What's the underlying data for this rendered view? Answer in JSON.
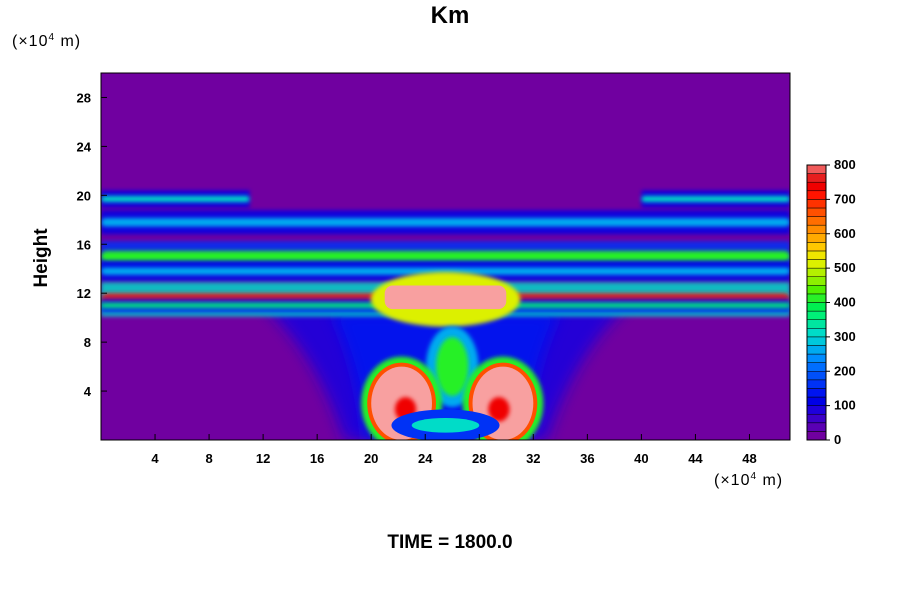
{
  "chart_data": {
    "type": "heatmap",
    "title": "Km",
    "x_unit": {
      "prefix": "(×10",
      "exp": "4",
      "suffix": " m)"
    },
    "y_unit": {
      "prefix": "(×10",
      "exp": "4",
      "suffix": " m)"
    },
    "ylabel": "Height",
    "xlabel": "",
    "footer": "TIME = 1800.0",
    "xlim": [
      0,
      51
    ],
    "ylim": [
      0,
      30
    ],
    "x_ticks": [
      4,
      8,
      12,
      16,
      20,
      24,
      28,
      32,
      36,
      40,
      44,
      48
    ],
    "y_ticks": [
      4,
      8,
      12,
      16,
      20,
      24,
      28
    ],
    "colorbar": {
      "min": 0,
      "max": 800,
      "tick_values": [
        0,
        100,
        200,
        300,
        400,
        500,
        600,
        700,
        800
      ],
      "levels": [
        {
          "value": 0,
          "color": "#7000a0"
        },
        {
          "value": 25,
          "color": "#5a00b4"
        },
        {
          "value": 50,
          "color": "#3c00c8"
        },
        {
          "value": 75,
          "color": "#1e00dc"
        },
        {
          "value": 100,
          "color": "#0000e6"
        },
        {
          "value": 125,
          "color": "#0014f0"
        },
        {
          "value": 150,
          "color": "#0032f5"
        },
        {
          "value": 175,
          "color": "#0050fa"
        },
        {
          "value": 200,
          "color": "#006eff"
        },
        {
          "value": 225,
          "color": "#008cff"
        },
        {
          "value": 250,
          "color": "#00aaf0"
        },
        {
          "value": 275,
          "color": "#00c8dc"
        },
        {
          "value": 300,
          "color": "#00dcc8"
        },
        {
          "value": 325,
          "color": "#00e6a0"
        },
        {
          "value": 350,
          "color": "#00f078"
        },
        {
          "value": 375,
          "color": "#00f050"
        },
        {
          "value": 400,
          "color": "#28f028"
        },
        {
          "value": 425,
          "color": "#50f000"
        },
        {
          "value": 450,
          "color": "#8cf000"
        },
        {
          "value": 475,
          "color": "#b4f000"
        },
        {
          "value": 500,
          "color": "#dcf000"
        },
        {
          "value": 525,
          "color": "#f0e600"
        },
        {
          "value": 550,
          "color": "#ffc800"
        },
        {
          "value": 575,
          "color": "#ffaa00"
        },
        {
          "value": 600,
          "color": "#ff8c00"
        },
        {
          "value": 625,
          "color": "#ff6e00"
        },
        {
          "value": 650,
          "color": "#ff5000"
        },
        {
          "value": 675,
          "color": "#ff3200"
        },
        {
          "value": 700,
          "color": "#ff1400"
        },
        {
          "value": 725,
          "color": "#f00000"
        },
        {
          "value": 750,
          "color": "#e61e1e"
        },
        {
          "value": 775,
          "color": "#f05a5a"
        },
        {
          "value": 800,
          "color": "#f8a0a0"
        }
      ]
    },
    "background_value": 0,
    "features": [
      {
        "name": "band-z20-left",
        "x0": 0,
        "x1": 11,
        "y": 19.7,
        "thickness": 0.5,
        "value": 300
      },
      {
        "name": "band-z20-right",
        "x0": 40,
        "x1": 51,
        "y": 19.7,
        "thickness": 0.5,
        "value": 300
      },
      {
        "name": "band-z18",
        "x0": 0,
        "x1": 51,
        "y": 17.8,
        "thickness": 0.7,
        "value": 250
      },
      {
        "name": "band-z15",
        "x0": 0,
        "x1": 51,
        "y": 15.0,
        "thickness": 0.9,
        "value": 400
      },
      {
        "name": "band-z13_8",
        "x0": 0,
        "x1": 51,
        "y": 13.8,
        "thickness": 0.6,
        "value": 250
      },
      {
        "name": "band-z11_5",
        "x0": 0,
        "x1": 51,
        "y": 11.5,
        "thickness": 1.0,
        "value": 750
      },
      {
        "name": "band-z11",
        "x0": 0,
        "x1": 51,
        "y": 11.0,
        "thickness": 0.4,
        "value": 350
      },
      {
        "name": "anvil-core",
        "x0": 21,
        "x1": 30,
        "y": 11.5,
        "thickness": 1.6,
        "value": 800
      },
      {
        "name": "updraft-green",
        "x0": 24.5,
        "x1": 27.5,
        "y": 6.0,
        "thickness": 3.0,
        "value": 400
      },
      {
        "name": "lobe-left",
        "x0": 20,
        "x1": 24.5,
        "y": 3.0,
        "thickness": 4.0,
        "value": 800
      },
      {
        "name": "lobe-right",
        "x0": 27.5,
        "x1": 32,
        "y": 3.0,
        "thickness": 4.0,
        "value": 800
      }
    ]
  }
}
